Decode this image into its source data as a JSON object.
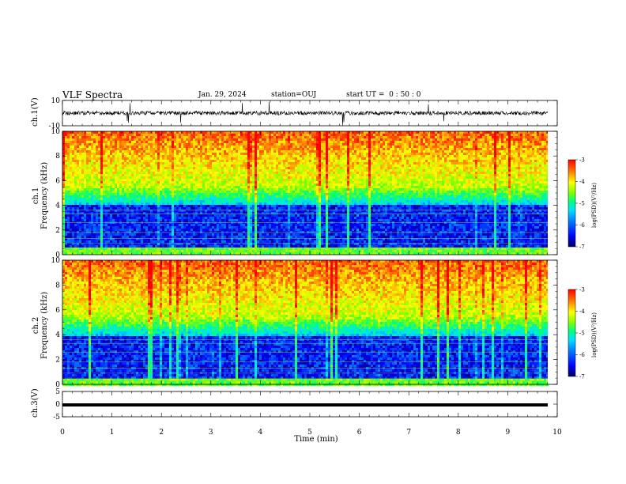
{
  "header": {
    "title": "VLF Spectra",
    "date": "Jan. 29, 2024",
    "station": "station=OUJ",
    "start": "start UT =  0 : 50 : 0"
  },
  "chart_data": [
    {
      "type": "line",
      "panel": "ch1-waveform",
      "ylabel": "ch.1(V)",
      "ylim": [
        -10,
        10
      ],
      "yticks": [
        "10",
        "-10"
      ],
      "xlim": [
        0,
        10
      ],
      "description_of_signal": "noisy waveform around 0 V with spikes"
    },
    {
      "type": "heatmap",
      "panel": "ch1-spectrogram",
      "ylabel": "ch.1",
      "ylabel_units": "Frequency (kHz)",
      "ylim": [
        0,
        10
      ],
      "yticks": [
        "0",
        "2",
        "4",
        "6",
        "8",
        "10"
      ],
      "xlim": [
        0,
        10
      ],
      "colorbar": {
        "label": "log(PSD)(V²/Hz)",
        "ticks": [
          "-3",
          "-4",
          "-5",
          "-6",
          "-7"
        ],
        "range": [
          -7,
          -3
        ]
      }
    },
    {
      "type": "heatmap",
      "panel": "ch2-spectrogram",
      "ylabel": "ch.2",
      "ylabel_units": "Frequency (kHz)",
      "ylim": [
        0,
        10
      ],
      "yticks": [
        "0",
        "2",
        "4",
        "6",
        "8",
        "10"
      ],
      "xlim": [
        0,
        10
      ],
      "colorbar": {
        "label": "log(PSD)(V²/Hz)",
        "ticks": [
          "-3",
          "-4",
          "-5",
          "-6",
          "-7"
        ],
        "range": [
          -7,
          -3
        ]
      }
    },
    {
      "type": "line",
      "panel": "ch3-waveform",
      "ylabel": "ch.3(V)",
      "ylim": [
        -5,
        5
      ],
      "yticks": [
        "5",
        "0",
        "-5"
      ],
      "xlim": [
        0,
        10
      ],
      "constant_value": -0.3
    }
  ],
  "xaxis": {
    "label": "Time (min)",
    "ticks": [
      "0",
      "1",
      "2",
      "3",
      "4",
      "5",
      "6",
      "7",
      "8",
      "9",
      "10"
    ]
  },
  "colors": {
    "colormap": [
      "#000060",
      "#0000ff",
      "#0080ff",
      "#00e0ff",
      "#00ff80",
      "#80ff00",
      "#ffff00",
      "#ff8000",
      "#ff0000"
    ]
  }
}
